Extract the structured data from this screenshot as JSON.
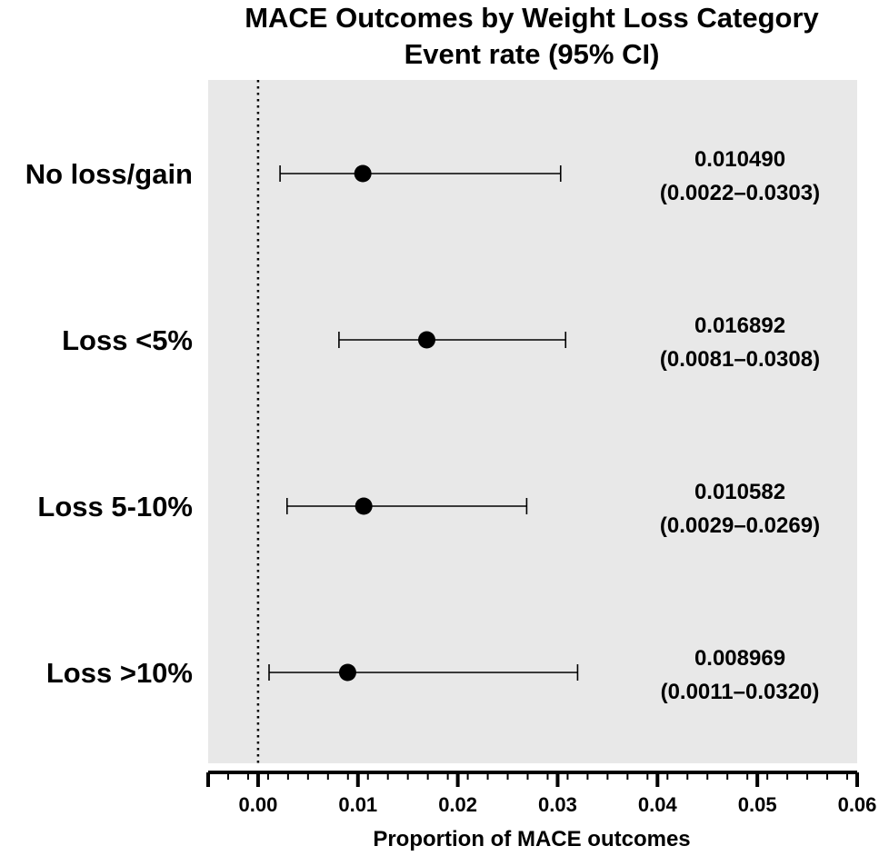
{
  "chart_data": {
    "type": "forest",
    "title": "MACE Outcomes by Weight Loss Category",
    "subtitle": "Event rate (95% CI)",
    "xlabel": "Proportion of MACE outcomes",
    "xlim": [
      -0.005,
      0.06
    ],
    "xticks": [
      0.0,
      0.01,
      0.02,
      0.03,
      0.04,
      0.05,
      0.06
    ],
    "tick_labels": [
      "0.00",
      "0.01",
      "0.02",
      "0.03",
      "0.04",
      "0.05",
      "0.06"
    ],
    "reference_line": 0,
    "grid": false,
    "categories": [
      "No loss/gain",
      "Loss <5%",
      "Loss 5-10%",
      "Loss >10%"
    ],
    "points": [
      {
        "category": "No loss/gain",
        "estimate": 0.01049,
        "lower": 0.0022,
        "upper": 0.0303,
        "value_label": "0.010490",
        "ci_label": "(0.0022–0.0303)"
      },
      {
        "category": "Loss <5%",
        "estimate": 0.016892,
        "lower": 0.0081,
        "upper": 0.0308,
        "value_label": "0.016892",
        "ci_label": "(0.0081–0.0308)"
      },
      {
        "category": "Loss 5-10%",
        "estimate": 0.010582,
        "lower": 0.0029,
        "upper": 0.0269,
        "value_label": "0.010582",
        "ci_label": "(0.0029–0.0269)"
      },
      {
        "category": "Loss >10%",
        "estimate": 0.008969,
        "lower": 0.0011,
        "upper": 0.032,
        "value_label": "0.008969",
        "ci_label": "(0.0011–0.0320)"
      }
    ],
    "colors": {
      "background": "#e8e8e8",
      "marker": "#000000"
    }
  }
}
